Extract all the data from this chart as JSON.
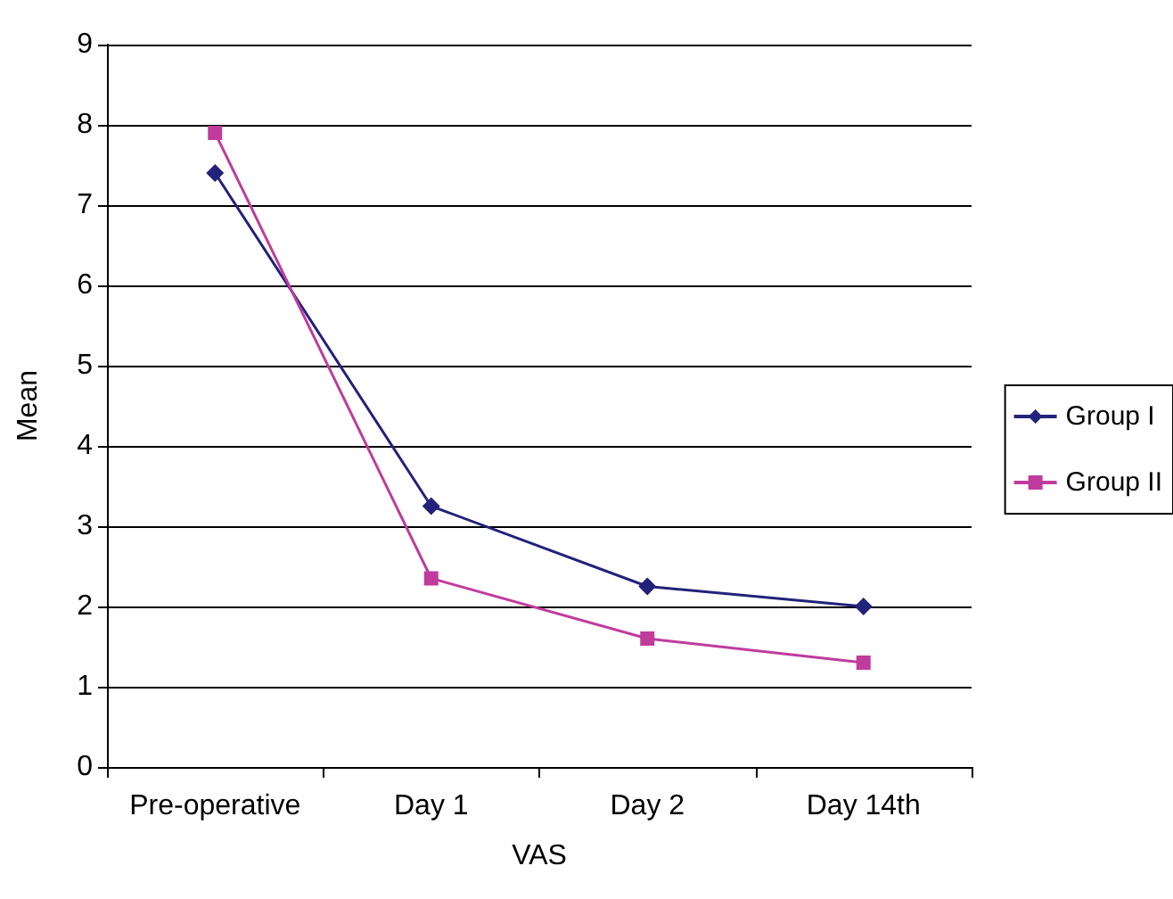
{
  "chart_data": {
    "type": "line",
    "xlabel": "VAS",
    "ylabel": "Mean",
    "categories": [
      "Pre-operative",
      "Day 1",
      "Day 2",
      "Day 14th"
    ],
    "series": [
      {
        "name": "Group I",
        "color": "#22227a",
        "marker": "diamond",
        "values": [
          7.4,
          3.25,
          2.25,
          2.0
        ]
      },
      {
        "name": "Group II",
        "color": "#c03c9c",
        "marker": "square",
        "values": [
          7.9,
          2.35,
          1.6,
          1.3
        ]
      }
    ],
    "ylim": [
      0,
      9
    ],
    "yticks": [
      0,
      1,
      2,
      3,
      4,
      5,
      6,
      7,
      8,
      9
    ],
    "grid": "y",
    "legend": "right"
  }
}
